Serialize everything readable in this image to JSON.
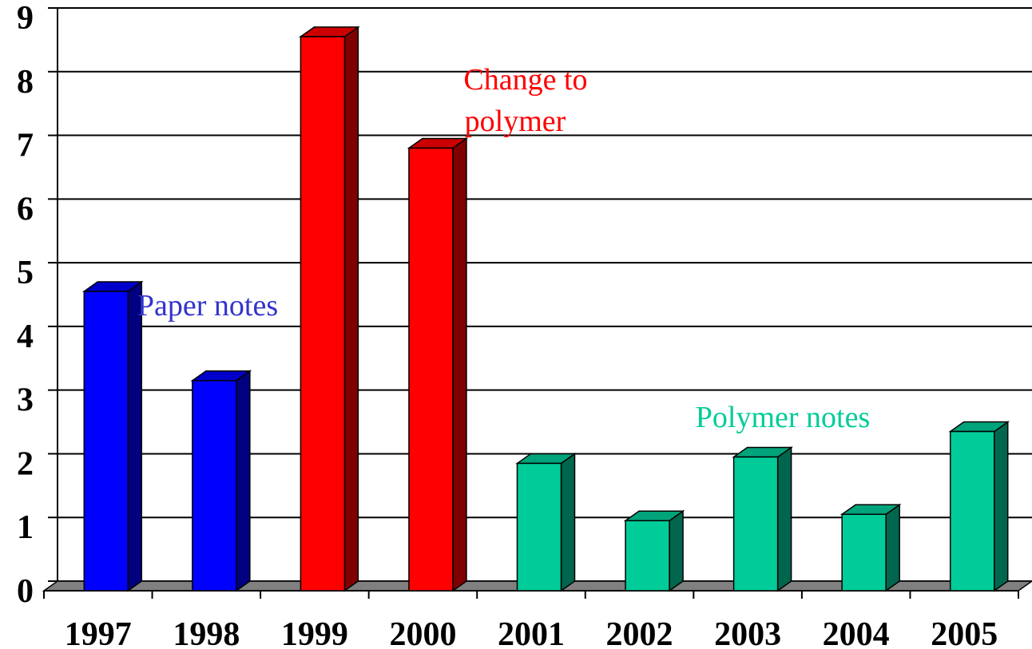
{
  "chart_data": {
    "type": "bar3d",
    "categories": [
      "1997",
      "1998",
      "1999",
      "2000",
      "2001",
      "2002",
      "2003",
      "2004",
      "2005"
    ],
    "values": [
      4.7,
      3.3,
      8.7,
      6.95,
      2.0,
      1.1,
      2.1,
      1.2,
      2.5
    ],
    "colors": [
      "#0000ff",
      "#0000ff",
      "#ff0000",
      "#ff0000",
      "#00cc99",
      "#00cc99",
      "#00cc99",
      "#00cc99",
      "#00cc99"
    ],
    "ylim": [
      0,
      9
    ],
    "yticks": [
      0,
      1,
      2,
      3,
      4,
      5,
      6,
      7,
      8,
      9
    ],
    "grid": true,
    "annotations": [
      {
        "lines": [
          "Paper notes"
        ],
        "color": "#3333cc"
      },
      {
        "lines": [
          "Change to",
          "polymer"
        ],
        "color": "#ff0000"
      },
      {
        "lines": [
          "Polymer notes"
        ],
        "color": "#00cc99"
      }
    ]
  }
}
